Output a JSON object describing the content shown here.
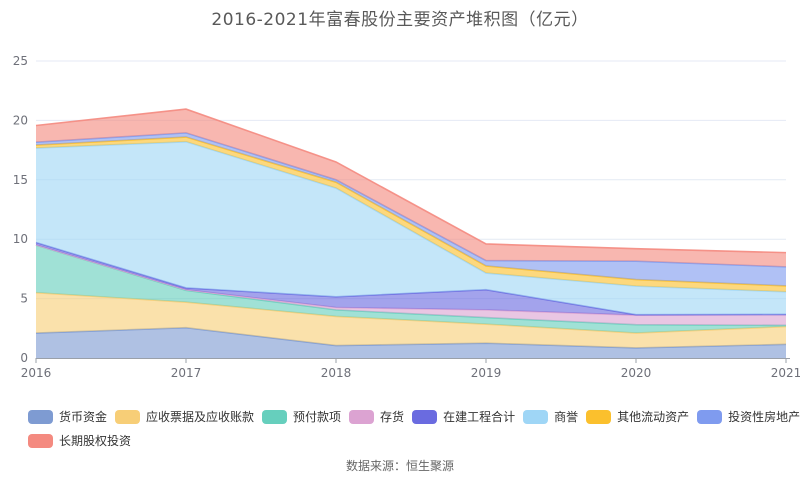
{
  "title": "2016-2021年富春股份主要资产堆积图（亿元）",
  "source": "数据来源：恒生聚源",
  "chart_data": {
    "type": "area",
    "stacked": true,
    "title": "2016-2021年富春股份主要资产堆积图（亿元）",
    "x": [
      "2016",
      "2017",
      "2018",
      "2019",
      "2020",
      "2021"
    ],
    "ylim": [
      0,
      25
    ],
    "yticks": [
      0,
      5,
      10,
      15,
      20,
      25
    ],
    "grid": true,
    "legend_position": "bottom",
    "unit": "亿元",
    "series": [
      {
        "name": "货币资金",
        "color": "#7E9BD2",
        "values": [
          2.1,
          2.55,
          1.05,
          1.25,
          0.85,
          1.15
        ]
      },
      {
        "name": "应收票据及应收账款",
        "color": "#F7CE77",
        "values": [
          3.4,
          2.15,
          2.45,
          1.6,
          1.25,
          1.5
        ]
      },
      {
        "name": "预付款项",
        "color": "#66CFBD",
        "values": [
          4.0,
          1.0,
          0.55,
          0.55,
          0.7,
          0.1
        ]
      },
      {
        "name": "存货",
        "color": "#DCA3D2",
        "values": [
          0.02,
          0.05,
          0.2,
          0.65,
          0.8,
          0.9
        ]
      },
      {
        "name": "在建工程合计",
        "color": "#6A6BE0",
        "values": [
          0.2,
          0.15,
          0.9,
          1.7,
          0.05,
          0.02
        ]
      },
      {
        "name": "商誉",
        "color": "#9FD6F6",
        "values": [
          7.95,
          12.3,
          9.15,
          1.4,
          2.4,
          1.9
        ]
      },
      {
        "name": "其他流动资产",
        "color": "#FBC02D",
        "values": [
          0.25,
          0.4,
          0.5,
          0.6,
          0.55,
          0.5
        ]
      },
      {
        "name": "投资性房地产",
        "color": "#7F9BEF",
        "values": [
          0.25,
          0.35,
          0.2,
          0.45,
          1.55,
          1.6
        ]
      },
      {
        "name": "长期股权投资",
        "color": "#F48A80",
        "values": [
          1.4,
          2.0,
          1.5,
          1.4,
          1.05,
          1.2
        ]
      }
    ]
  }
}
